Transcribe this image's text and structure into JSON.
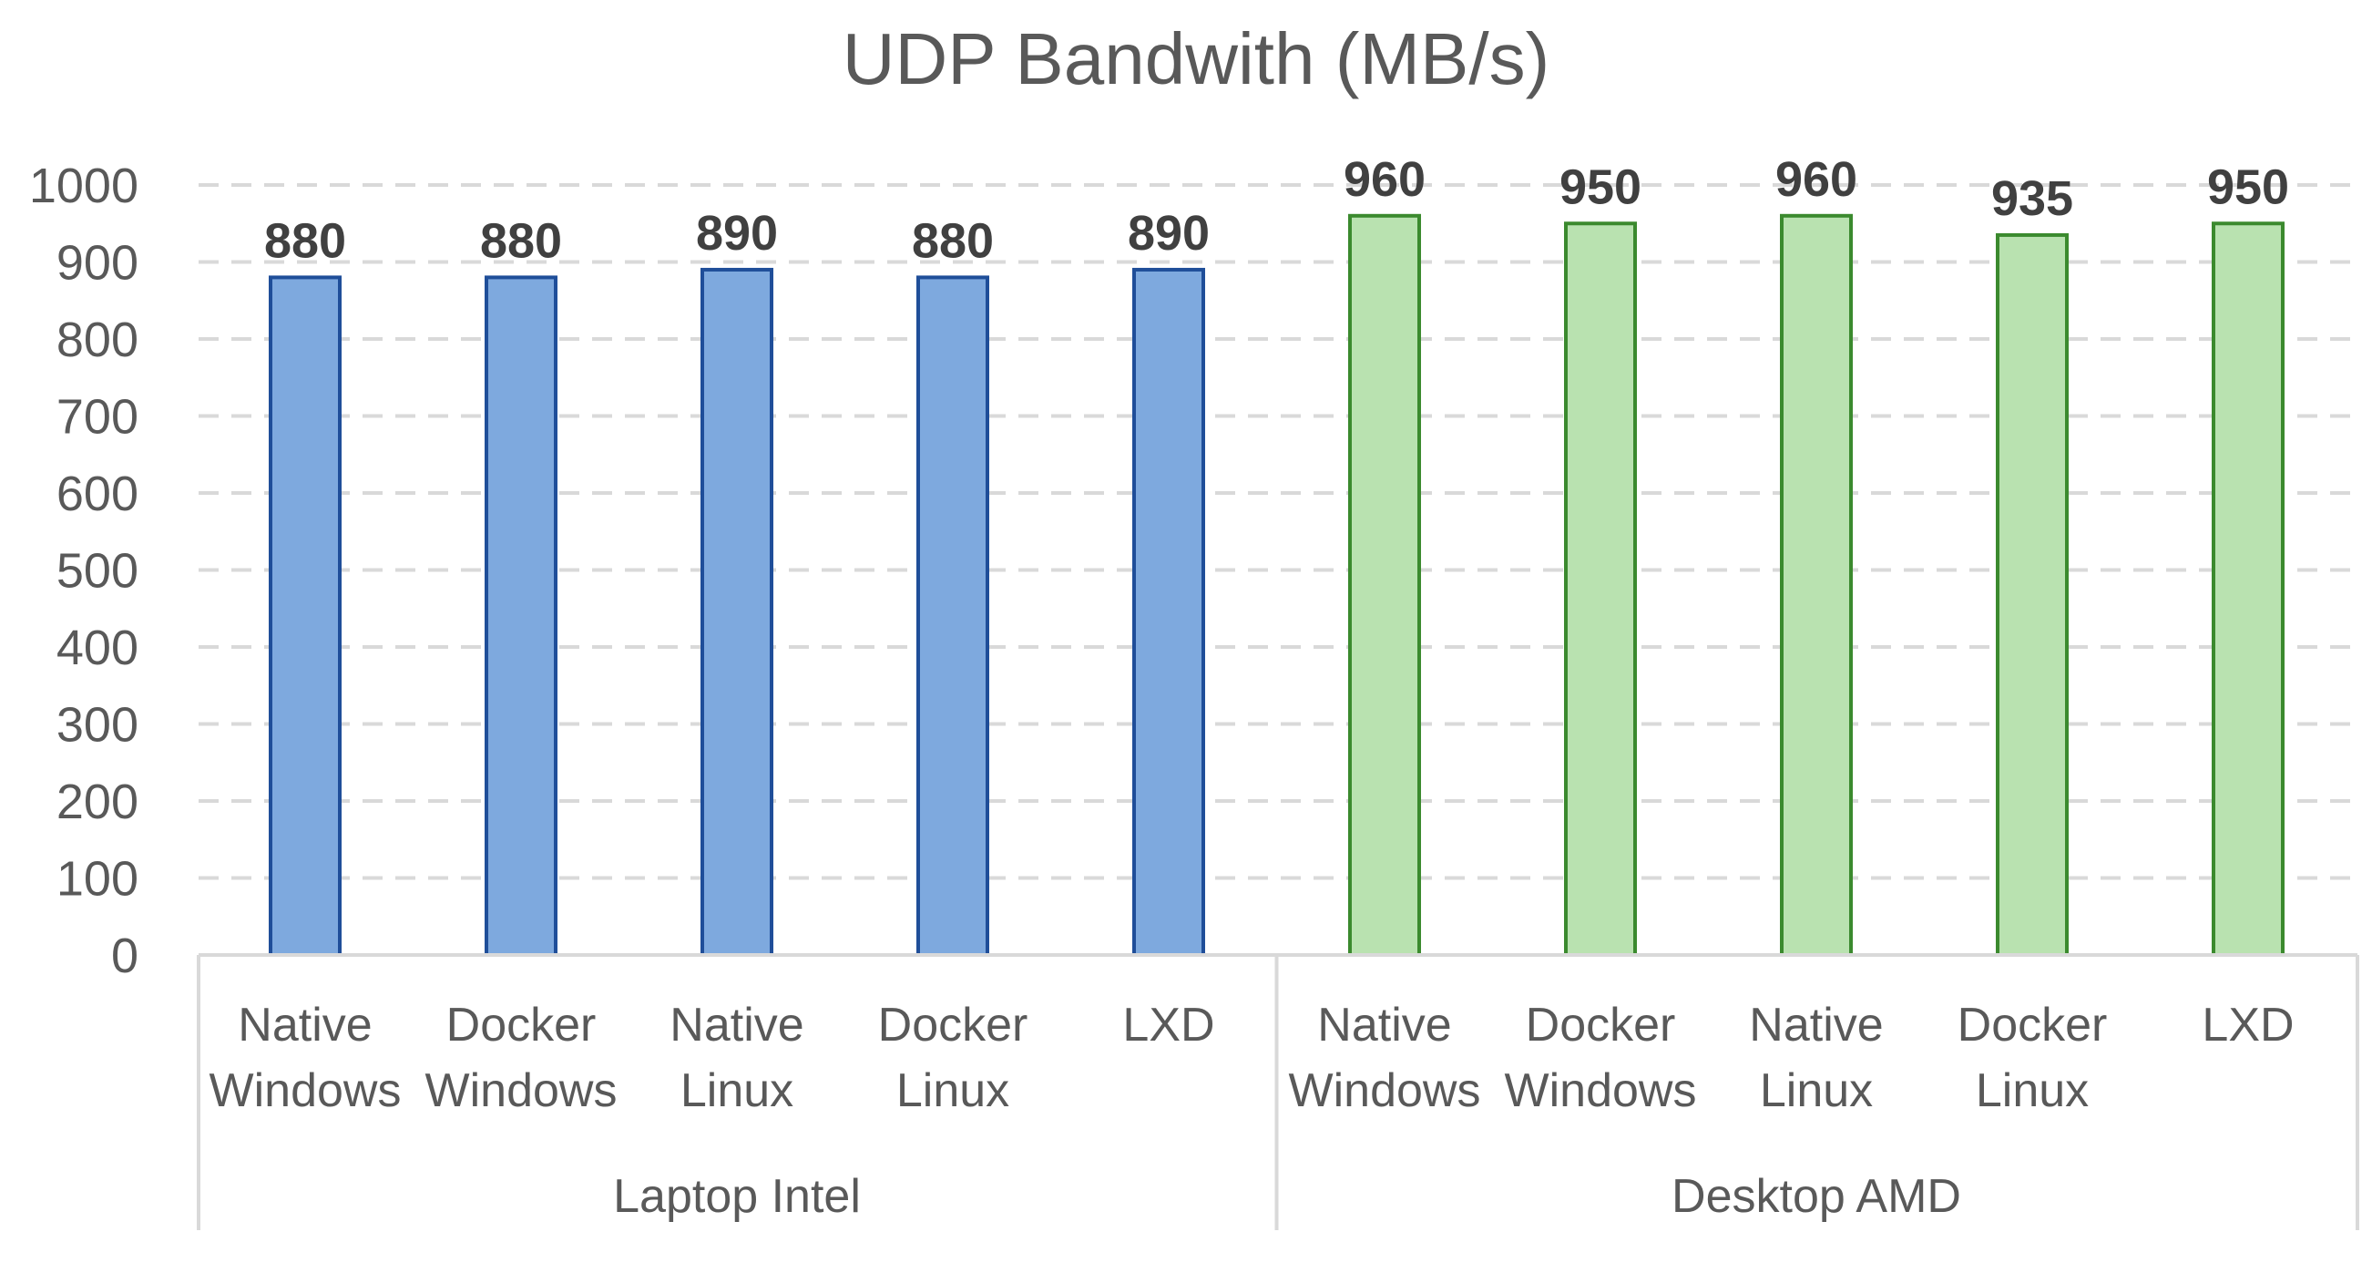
{
  "chart_data": {
    "type": "bar",
    "title": "UDP Bandwith (MB/s)",
    "xlabel": "",
    "ylabel": "",
    "ylim": [
      0,
      1000
    ],
    "yticks": [
      0,
      100,
      200,
      300,
      400,
      500,
      600,
      700,
      800,
      900,
      1000
    ],
    "grid": "horizontal dashed",
    "legend": "none",
    "groups": [
      {
        "name": "Laptop Intel",
        "color": "#7ea9de",
        "edge_color": "#1f4e99",
        "bars": [
          {
            "label_lines": [
              "Native",
              "Windows"
            ],
            "value": 880
          },
          {
            "label_lines": [
              "Docker",
              "Windows"
            ],
            "value": 880
          },
          {
            "label_lines": [
              "Native",
              "Linux"
            ],
            "value": 890
          },
          {
            "label_lines": [
              "Docker",
              "Linux"
            ],
            "value": 880
          },
          {
            "label_lines": [
              "LXD"
            ],
            "value": 890
          }
        ]
      },
      {
        "name": "Desktop AMD",
        "color": "#b9e2b0",
        "edge_color": "#3b8a2e",
        "bars": [
          {
            "label_lines": [
              "Native",
              "Windows"
            ],
            "value": 960
          },
          {
            "label_lines": [
              "Docker",
              "Windows"
            ],
            "value": 950
          },
          {
            "label_lines": [
              "Native",
              "Linux"
            ],
            "value": 960
          },
          {
            "label_lines": [
              "Docker",
              "Linux"
            ],
            "value": 935
          },
          {
            "label_lines": [
              "LXD"
            ],
            "value": 950
          }
        ]
      }
    ]
  },
  "colors": {
    "grid": "#d9d9d9",
    "axis": "#d9d9d9",
    "text": "#595959",
    "data_label": "#404040"
  }
}
